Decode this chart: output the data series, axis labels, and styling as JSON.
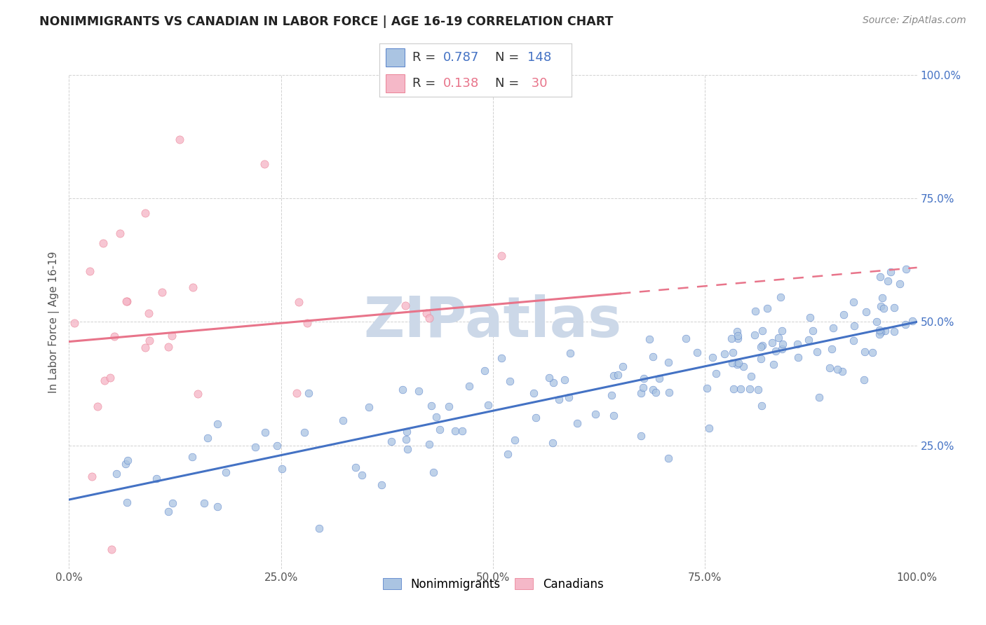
{
  "title": "NONIMMIGRANTS VS CANADIAN IN LABOR FORCE | AGE 16-19 CORRELATION CHART",
  "source": "Source: ZipAtlas.com",
  "ylabel": "In Labor Force | Age 16-19",
  "blue_R": 0.787,
  "blue_N": 148,
  "pink_R": 0.138,
  "pink_N": 30,
  "blue_color": "#aac4e2",
  "pink_color": "#f5b8c8",
  "blue_line_color": "#4472c4",
  "pink_line_color": "#e8748a",
  "background_color": "#ffffff",
  "grid_color": "#cccccc",
  "watermark_color": "#ccd8e8",
  "title_fontsize": 12.5,
  "axis_label_fontsize": 11,
  "tick_fontsize": 11,
  "source_fontsize": 10,
  "right_tick_color": "#4472c4",
  "legend_R_color": "#4472c4",
  "legend_N_color": "#4472c4",
  "legend_pink_R_color": "#e8748a",
  "legend_pink_N_color": "#e8748a"
}
